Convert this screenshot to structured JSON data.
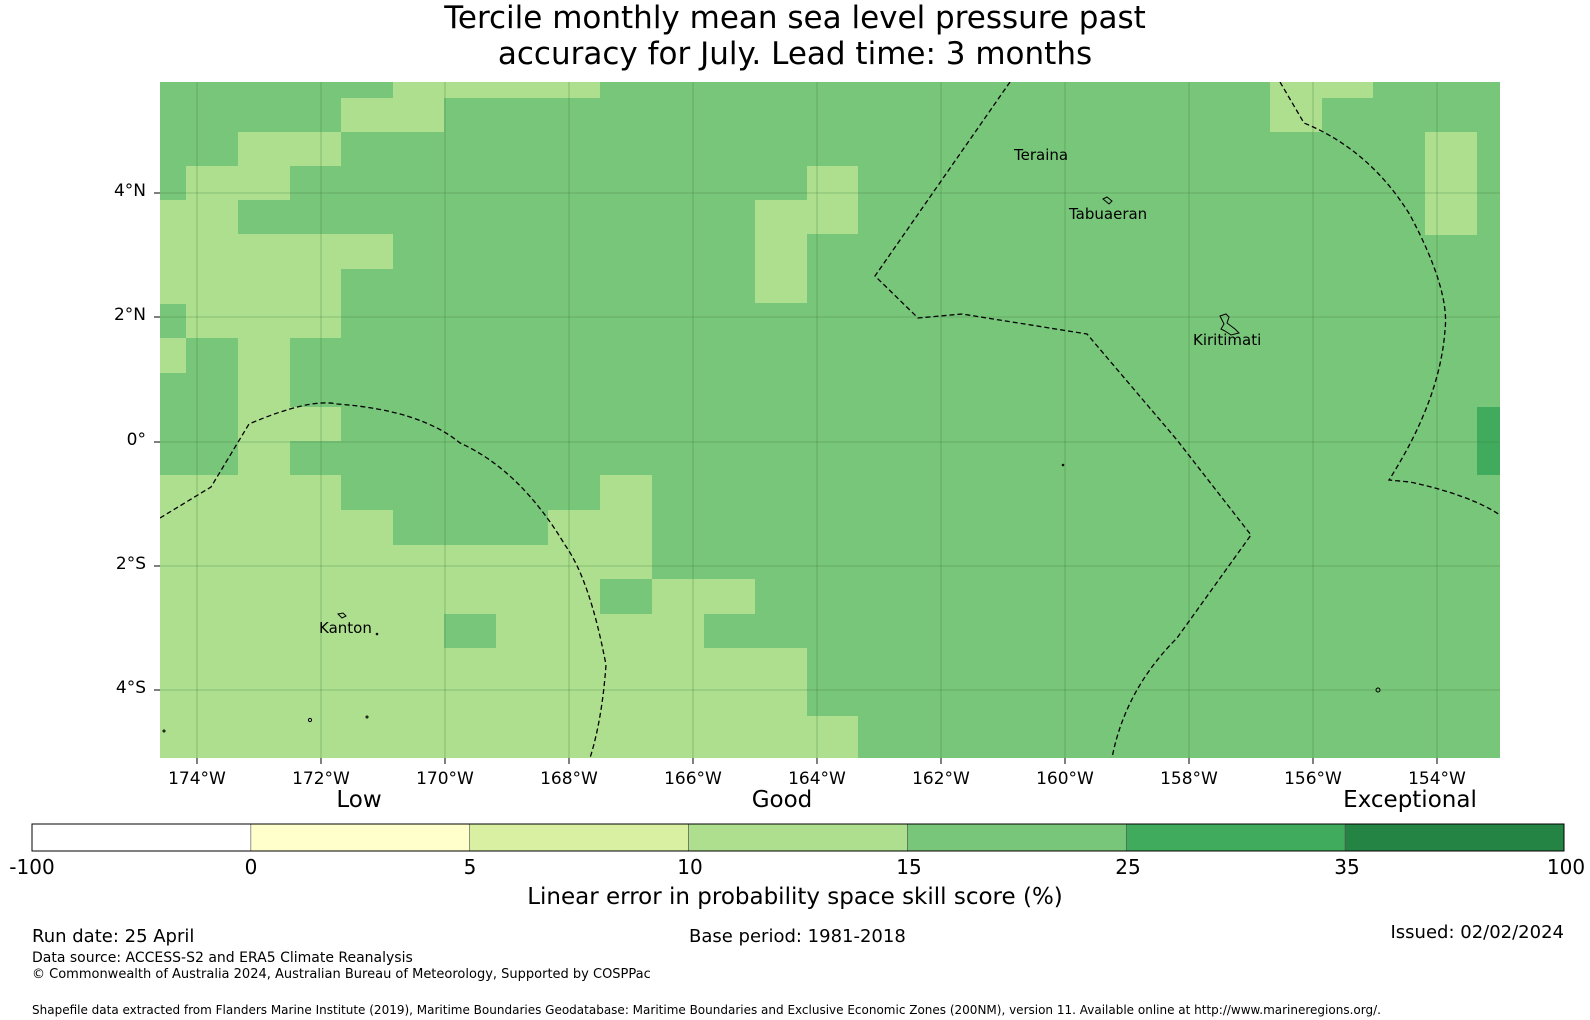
{
  "title": {
    "line1": "Tercile monthly mean sea level pressure past",
    "line2": "accuracy for July. Lead time: 3 months"
  },
  "map": {
    "lat_labels": [
      "4°N",
      "2°N",
      "0°",
      "2°S",
      "4°S"
    ],
    "lon_labels": [
      "174°W",
      "172°W",
      "170°W",
      "168°W",
      "166°W",
      "164°W",
      "162°W",
      "160°W",
      "158°W",
      "156°W",
      "154°W"
    ],
    "places": [
      "Teraina",
      "Tabuaeran",
      "Kiritimati",
      "Kanton"
    ],
    "colors": {
      "class_10_15": "#addf8e",
      "class_15_25": "#78c679",
      "class_25_35": "#41ab5d"
    }
  },
  "colorbar": {
    "categories": [
      "Low",
      "Good",
      "Exceptional"
    ],
    "ticks": [
      "-100",
      "0",
      "5",
      "10",
      "15",
      "25",
      "35",
      "100"
    ],
    "colors": [
      "#ffffff",
      "#ffffcc",
      "#d9f0a3",
      "#addf8e",
      "#78c679",
      "#41ab5d",
      "#238443"
    ],
    "label": "Linear error in probability space skill score (%)"
  },
  "footer": {
    "run_date": "Run date: 25 April",
    "base_period": "Base period: 1981-2018",
    "issued": "Issued: 02/02/2024",
    "data_source": "Data source: ACCESS-S2 and ERA5 Climate Reanalysis",
    "copyright": "© Commonwealth of Australia 2024, Australian Bureau of Meteorology, Supported by COSPPac",
    "shapefile": "Shapefile data extracted from Flanders Marine Institute (2019), Maritime Boundaries Geodatabase: Maritime Boundaries and Exclusive Economic Zones (200NM), version 11. Available online at http://www.marineregions.org/."
  }
}
